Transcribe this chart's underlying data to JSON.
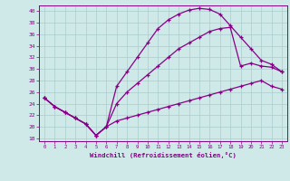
{
  "xlabel": "Windchill (Refroidissement éolien,°C)",
  "bg_color": "#cfe8e8",
  "line_color": "#880088",
  "grid_color": "#aacccc",
  "xlim": [
    -0.5,
    23.5
  ],
  "ylim": [
    17.5,
    41.0
  ],
  "xticks": [
    0,
    1,
    2,
    3,
    4,
    5,
    6,
    7,
    8,
    9,
    10,
    11,
    12,
    13,
    14,
    15,
    16,
    17,
    18,
    19,
    20,
    21,
    22,
    23
  ],
  "yticks": [
    18,
    20,
    22,
    24,
    26,
    28,
    30,
    32,
    34,
    36,
    38,
    40
  ],
  "curve1_x": [
    0,
    1,
    2,
    3,
    4,
    5,
    6,
    7,
    8,
    9,
    10,
    11,
    12,
    13,
    14,
    15,
    16,
    17,
    18,
    19,
    20,
    21,
    22,
    23
  ],
  "curve1_y": [
    25.0,
    23.5,
    22.5,
    21.5,
    20.5,
    18.5,
    20.0,
    27.0,
    29.5,
    32.0,
    34.5,
    37.0,
    38.5,
    39.5,
    40.2,
    40.5,
    40.3,
    39.5,
    37.5,
    35.5,
    33.5,
    31.5,
    30.8,
    29.5
  ],
  "curve2_x": [
    0,
    1,
    2,
    3,
    4,
    5,
    6,
    7,
    8,
    9,
    10,
    11,
    12,
    13,
    14,
    15,
    16,
    17,
    18,
    19,
    20,
    21,
    22,
    23
  ],
  "curve2_y": [
    25.0,
    23.5,
    22.5,
    21.5,
    20.5,
    18.5,
    20.0,
    24.0,
    26.0,
    27.5,
    29.0,
    30.5,
    32.0,
    33.5,
    34.5,
    35.5,
    36.5,
    37.0,
    37.2,
    30.5,
    31.0,
    30.5,
    30.3,
    29.5
  ],
  "curve3_x": [
    0,
    1,
    2,
    3,
    4,
    5,
    6,
    7,
    8,
    9,
    10,
    11,
    12,
    13,
    14,
    15,
    16,
    17,
    18,
    19,
    20,
    21,
    22,
    23
  ],
  "curve3_y": [
    25.0,
    23.5,
    22.5,
    21.5,
    20.5,
    18.5,
    20.0,
    21.0,
    21.5,
    22.0,
    22.5,
    23.0,
    23.5,
    24.0,
    24.5,
    25.0,
    25.5,
    26.0,
    26.5,
    27.0,
    27.5,
    28.0,
    27.0,
    26.5
  ]
}
